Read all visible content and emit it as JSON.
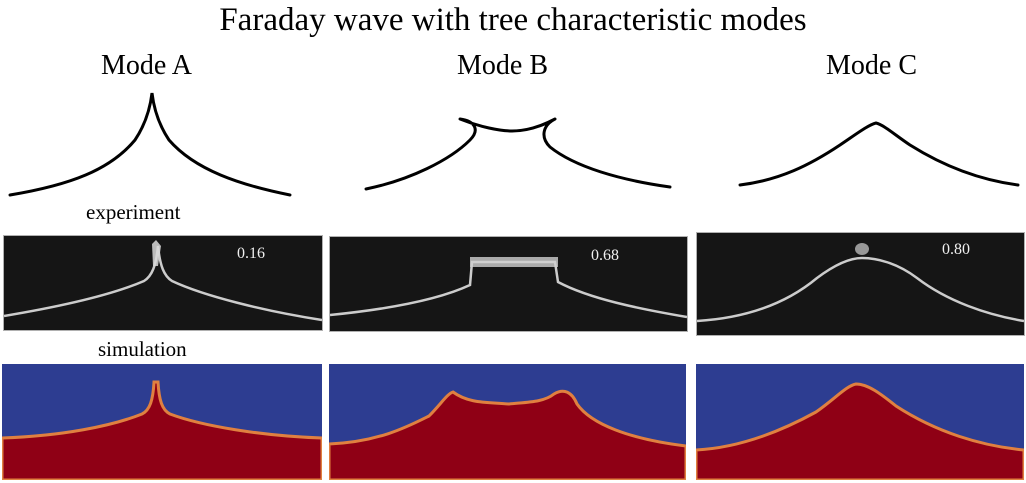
{
  "title": "Faraday wave with tree characteristic modes",
  "row_labels": {
    "experiment": "experiment",
    "simulation": "simulation"
  },
  "modes": [
    {
      "label": "Mode A",
      "experiment_value": "0.16"
    },
    {
      "label": "Mode B",
      "experiment_value": "0.68"
    },
    {
      "label": "Mode C",
      "experiment_value": "0.80"
    }
  ],
  "colors": {
    "experiment_background": "#151515",
    "interface_highlight": "#e8e8e8",
    "simulation_gas": "#2d3d91",
    "simulation_liquid": "#8f0015",
    "sketch_line": "#000000"
  }
}
